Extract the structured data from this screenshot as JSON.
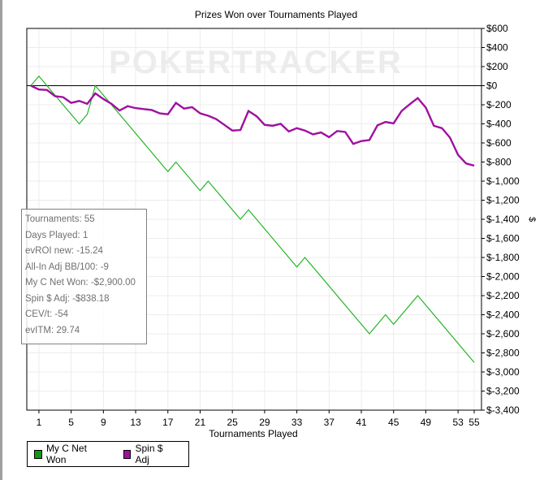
{
  "chart_data": {
    "type": "line",
    "title": "Prizes Won over Tournaments Played",
    "xlabel": "Tournaments Played",
    "ylabel": "$",
    "xlim": [
      0,
      55
    ],
    "ylim": [
      -3400,
      600
    ],
    "x_ticks": [
      1,
      5,
      9,
      13,
      17,
      21,
      25,
      29,
      33,
      37,
      41,
      45,
      49,
      53,
      55
    ],
    "y_ticks": [
      600,
      400,
      200,
      0,
      -200,
      -400,
      -600,
      -800,
      -1000,
      -1200,
      -1400,
      -1600,
      -1800,
      -2000,
      -2200,
      -2400,
      -2600,
      -2800,
      -3000,
      -3200,
      -3400
    ],
    "y_tick_labels": [
      "$600",
      "$400",
      "$200",
      "$0",
      "$-200",
      "$-400",
      "$-600",
      "$-800",
      "$-1,000",
      "$-1,200",
      "$-1,400",
      "$-1,600",
      "$-1,800",
      "$-2,000",
      "$-2,200",
      "$-2,400",
      "$-2,600",
      "$-2,800",
      "$-3,000",
      "$-3,200",
      "$-3,400"
    ],
    "grid": true,
    "legend_placement": "bottom-left",
    "watermark": "POKERTRACKER",
    "series": [
      {
        "name": "My C Net Won",
        "color": "#22b422",
        "points": [
          [
            0,
            0
          ],
          [
            1,
            100
          ],
          [
            6,
            -400
          ],
          [
            7,
            -300
          ],
          [
            8,
            0
          ],
          [
            17,
            -900
          ],
          [
            18,
            -800
          ],
          [
            21,
            -1100
          ],
          [
            22,
            -1000
          ],
          [
            26,
            -1400
          ],
          [
            27,
            -1300
          ],
          [
            33,
            -1900
          ],
          [
            34,
            -1800
          ],
          [
            42,
            -2600
          ],
          [
            44,
            -2400
          ],
          [
            45,
            -2500
          ],
          [
            48,
            -2200
          ],
          [
            55,
            -2900
          ]
        ]
      },
      {
        "name": "Spin $ Adj",
        "color": "#a010a0",
        "values": [
          0,
          -40,
          -45,
          -110,
          -120,
          -180,
          -160,
          -190,
          -80,
          -140,
          -190,
          -260,
          -215,
          -235,
          -245,
          -255,
          -290,
          -300,
          -180,
          -240,
          -225,
          -290,
          -315,
          -350,
          -410,
          -470,
          -465,
          -265,
          -320,
          -410,
          -420,
          -400,
          -480,
          -445,
          -470,
          -510,
          -490,
          -540,
          -475,
          -485,
          -610,
          -580,
          -570,
          -415,
          -380,
          -395,
          -265,
          -195,
          -130,
          -230,
          -420,
          -445,
          -545,
          -725,
          -815,
          -838
        ]
      }
    ]
  },
  "stats": [
    "Tournaments: 55",
    "Days Played: 1",
    "evROI new: -15.24",
    "All-In Adj BB/100: -9",
    "My C Net Won: -$2,900.00",
    "Spin $ Adj: -$838.18",
    "CEV/t: -54",
    "evITM: 29.74"
  ],
  "legend": [
    "My C Net Won",
    "Spin $ Adj"
  ]
}
